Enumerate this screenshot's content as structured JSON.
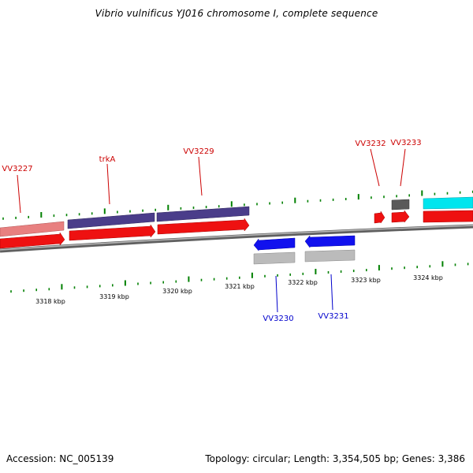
{
  "header": {
    "title": "Vibrio vulnificus YJ016 chromosome I, complete sequence"
  },
  "footer": {
    "accession": "Accession: NC_005139",
    "topology": "Topology: circular; Length: 3,354,505 bp; Genes: 3,386"
  },
  "colors": {
    "label_forward": "#cc0000",
    "label_reverse": "#0000cc",
    "tick": "#008000",
    "backbone": "#808080",
    "cds_forward": "#ee1111",
    "cds_reverse": "#bbbbbb",
    "gene_reverse": "#1111ee",
    "gene_pink": "#e88080",
    "gene_purple": "#4a3d8a",
    "gene_gray": "#666666",
    "gene_cyan": "#00e5ee"
  },
  "scale": {
    "labels": [
      "3318 kbp",
      "3319 kbp",
      "3320 kbp",
      "3321 kbp",
      "3322 kbp",
      "3323 kbp",
      "3324 kbp"
    ]
  },
  "genes": {
    "forward": [
      {
        "label": "VV3227"
      },
      {
        "label": "trkA"
      },
      {
        "label": "VV3229"
      },
      {
        "label": "VV3232"
      },
      {
        "label": "VV3233"
      }
    ],
    "reverse": [
      {
        "label": "VV3230"
      },
      {
        "label": "VV3231"
      }
    ]
  }
}
